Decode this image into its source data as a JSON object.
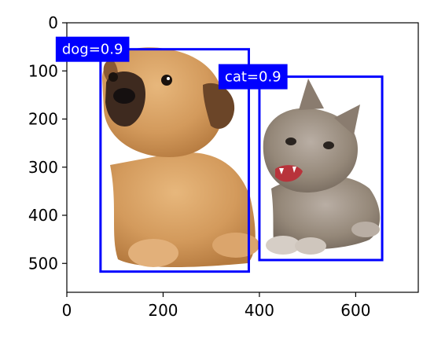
{
  "figure": {
    "image_description_icon": "photo-dog-and-kitten-icon",
    "x_ticks": [
      "0",
      "200",
      "400",
      "600"
    ],
    "y_ticks": [
      "0",
      "100",
      "200",
      "300",
      "400",
      "500"
    ],
    "x_range": [
      0,
      730
    ],
    "y_range": [
      560,
      0
    ]
  },
  "detections": [
    {
      "label": "dog=0.9",
      "color": "#0000ff",
      "bbox_data": [
        70,
        55,
        378,
        517
      ]
    },
    {
      "label": "cat=0.9",
      "color": "#0000ff",
      "bbox_data": [
        400,
        112,
        655,
        493
      ]
    }
  ]
}
